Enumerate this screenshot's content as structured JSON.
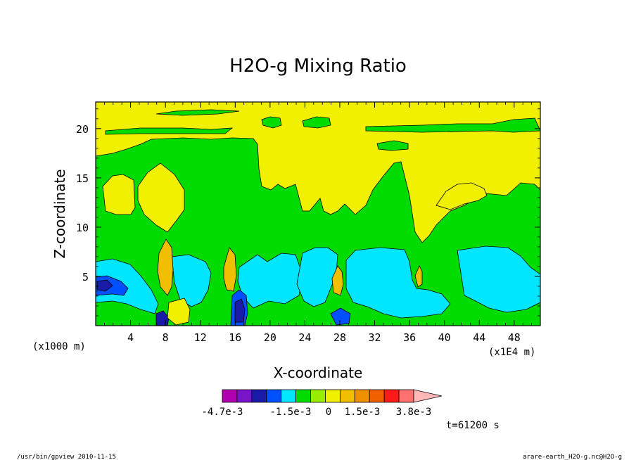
{
  "chart_data": {
    "type": "heatmap",
    "title": "H2O-g Mixing Ratio",
    "xlabel": "X-coordinate",
    "ylabel": "Z-coordinate",
    "x_unit_label": "(x1000 m)",
    "x_scale_label": "(x1E4 m)",
    "xlim": [
      0,
      51
    ],
    "ylim": [
      0,
      22.7
    ],
    "x_ticks": [
      "4",
      "8",
      "12",
      "16",
      "20",
      "24",
      "28",
      "32",
      "36",
      "40",
      "44",
      "48"
    ],
    "x_tick_values": [
      4,
      8,
      12,
      16,
      20,
      24,
      28,
      32,
      36,
      40,
      44,
      48
    ],
    "y_ticks": [
      "5",
      "10",
      "15",
      "20"
    ],
    "y_tick_values": [
      5,
      10,
      15,
      20
    ],
    "time_label": "t=61200 s",
    "colorbar": {
      "labels": [
        "-4.7e-3",
        "-1.5e-3",
        "0",
        "1.5e-3",
        "3.8e-3"
      ],
      "colors": [
        "#b000b0",
        "#7a14c8",
        "#1a1aa8",
        "#0050ff",
        "#00e6ff",
        "#00dc00",
        "#99ee00",
        "#f0f000",
        "#f0c000",
        "#f09000",
        "#f06000",
        "#ff1a1a",
        "#ff7070",
        "#ffb8b8"
      ]
    },
    "field_colors": {
      "background": "#f0f000",
      "green": "#00dc00",
      "cyan": "#00e6ff",
      "blue": "#0050ff",
      "dark_blue": "#1a1aa8",
      "orange": "#f0c000"
    }
  },
  "footer": {
    "left": "/usr/bin/gpview   2010-11-15",
    "right": "arare-earth_H2O-g.nc@H2O-g"
  }
}
